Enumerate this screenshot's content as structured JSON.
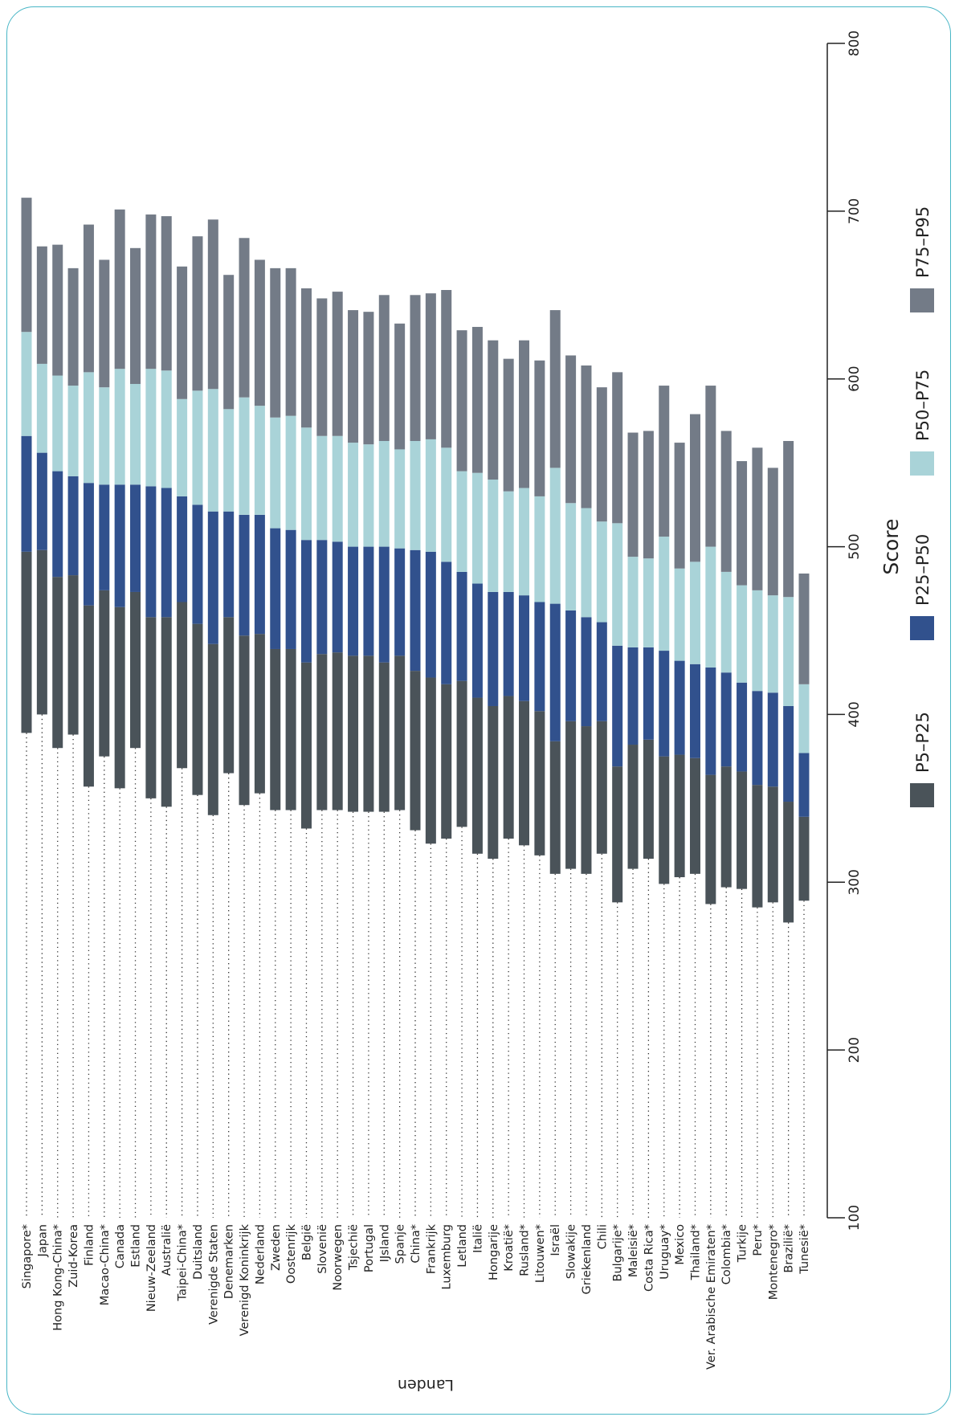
{
  "chart_data": {
    "type": "bar",
    "stacked": true,
    "orientation": "horizontal",
    "xlabel": "Landen",
    "ylabel": "Score",
    "ylim": [
      100,
      800
    ],
    "yticks": [
      100,
      200,
      300,
      400,
      500,
      600,
      700,
      800
    ],
    "grid": false,
    "legend_position": "bottom",
    "categories": [
      "Singapore*",
      "Japan",
      "Hong Kong-China*",
      "Zuid-Korea",
      "Finland",
      "Macao-China*",
      "Canada",
      "Estland",
      "Nieuw-Zeeland",
      "Australië",
      "Taipei-China*",
      "Duitsland",
      "Verenigde Staten",
      "Denemarken",
      "Verenigd Koninkrijk",
      "Nederland",
      "Zweden",
      "Oostenrijk",
      "België",
      "Slovenië",
      "Noorwegen",
      "Tsjechië",
      "Portugal",
      "IJsland",
      "Spanje",
      "China*",
      "Frankrijk",
      "Luxemburg",
      "Letland",
      "Italië",
      "Hongarije",
      "Kroatië*",
      "Rusland*",
      "Litouwen*",
      "Israël",
      "Slowakije",
      "Griekenland",
      "Chili",
      "Bulgarije*",
      "Maleisië*",
      "Costa Rica*",
      "Uruguay*",
      "Mexico",
      "Thailand*",
      "Ver. Arabische Emiraten*",
      "Colombia*",
      "Turkije",
      "Peru*",
      "Montenegro*",
      "Brazilië*",
      "Tunesië*"
    ],
    "percentiles": {
      "P5": [
        389,
        400,
        380,
        388,
        357,
        375,
        356,
        380,
        350,
        345,
        368,
        352,
        340,
        365,
        346,
        353,
        343,
        343,
        332,
        343,
        343,
        342,
        342,
        342,
        343,
        331,
        323,
        326,
        333,
        317,
        314,
        326,
        322,
        316,
        305,
        308,
        305,
        317,
        288,
        308,
        314,
        299,
        303,
        305,
        287,
        297,
        296,
        285,
        288,
        276,
        289
      ],
      "P25": [
        497,
        498,
        482,
        483,
        465,
        474,
        464,
        473,
        458,
        458,
        467,
        454,
        442,
        458,
        447,
        448,
        439,
        439,
        431,
        436,
        437,
        435,
        435,
        431,
        435,
        426,
        422,
        418,
        420,
        410,
        405,
        411,
        408,
        402,
        384,
        396,
        393,
        396,
        369,
        382,
        385,
        375,
        376,
        374,
        364,
        369,
        366,
        358,
        357,
        348,
        339
      ],
      "P50": [
        566,
        556,
        545,
        542,
        538,
        537,
        537,
        537,
        536,
        535,
        530,
        525,
        521,
        521,
        519,
        519,
        511,
        510,
        504,
        504,
        503,
        500,
        500,
        500,
        499,
        498,
        497,
        491,
        485,
        478,
        473,
        473,
        471,
        467,
        466,
        462,
        458,
        455,
        441,
        440,
        440,
        438,
        432,
        430,
        428,
        425,
        419,
        414,
        413,
        405,
        377
      ],
      "P75": [
        628,
        609,
        602,
        596,
        604,
        595,
        606,
        597,
        606,
        605,
        588,
        593,
        594,
        582,
        589,
        584,
        577,
        578,
        571,
        566,
        566,
        562,
        561,
        563,
        558,
        563,
        564,
        559,
        545,
        544,
        540,
        533,
        535,
        530,
        547,
        526,
        523,
        515,
        514,
        494,
        493,
        506,
        487,
        491,
        500,
        485,
        477,
        474,
        471,
        470,
        418
      ],
      "P95": [
        708,
        679,
        680,
        666,
        692,
        671,
        701,
        678,
        698,
        697,
        667,
        685,
        695,
        662,
        684,
        671,
        666,
        666,
        654,
        648,
        652,
        641,
        640,
        650,
        633,
        650,
        651,
        653,
        629,
        631,
        623,
        612,
        623,
        611,
        641,
        614,
        608,
        595,
        604,
        568,
        569,
        596,
        562,
        579,
        596,
        569,
        551,
        559,
        547,
        563,
        484
      ]
    },
    "series": [
      {
        "name": "P5–P25",
        "color": "#4a5359"
      },
      {
        "name": "P25–P50",
        "color": "#31518d"
      },
      {
        "name": "P50–P75",
        "color": "#a9d3d8"
      },
      {
        "name": "P75–P95",
        "color": "#737b87"
      }
    ]
  }
}
